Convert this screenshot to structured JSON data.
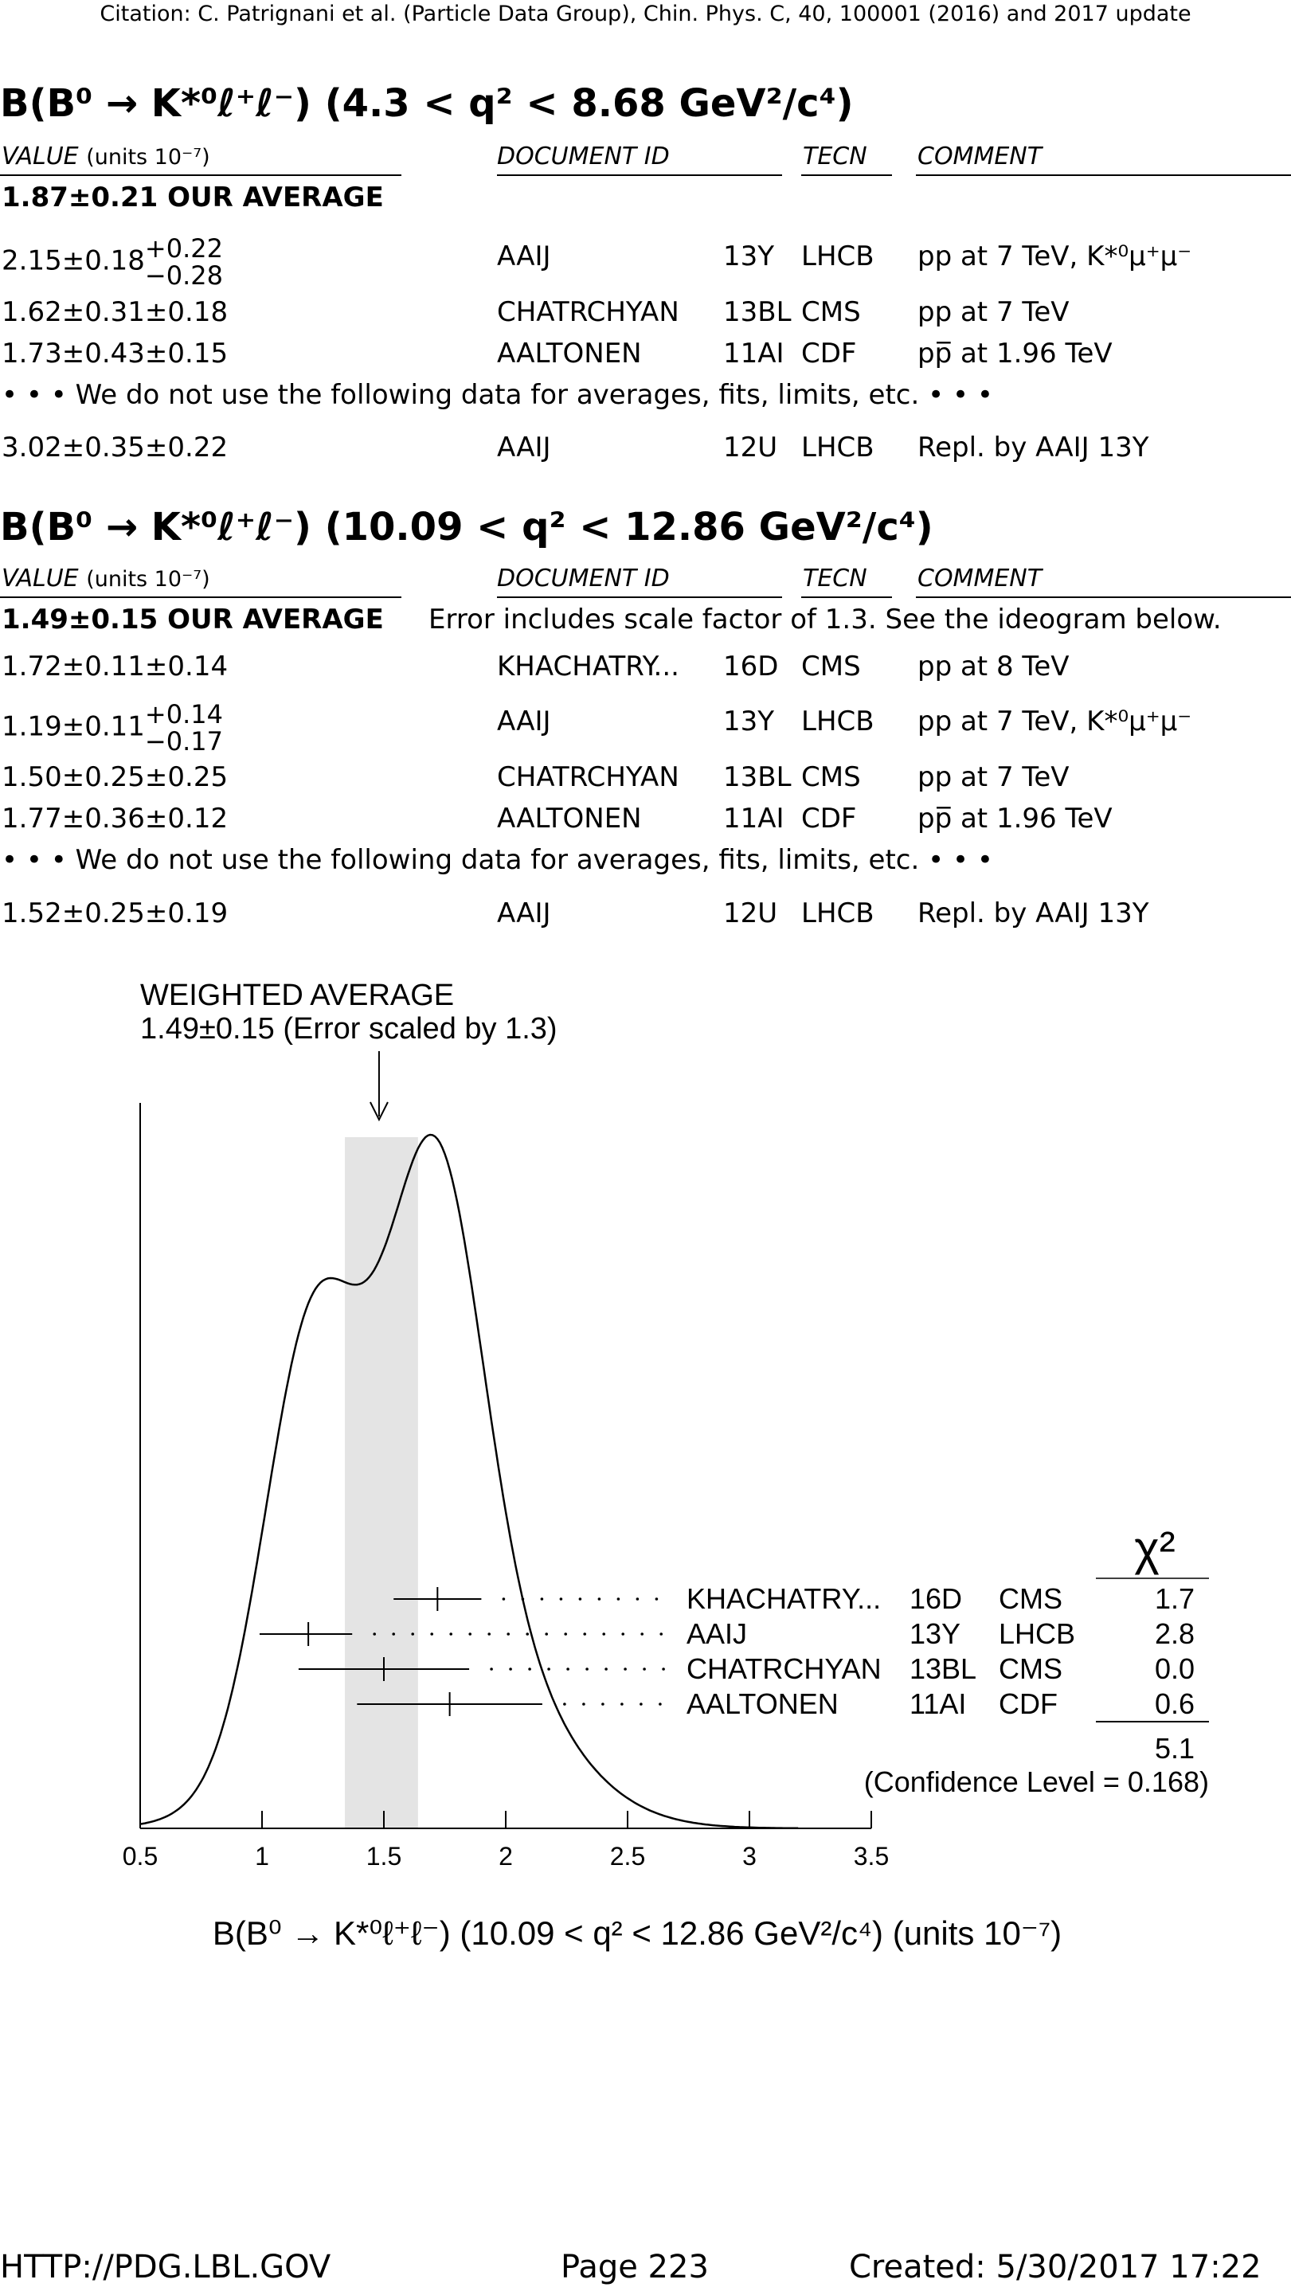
{
  "citation": "Citation: C. Patrignani et al. (Particle Data Group), Chin. Phys. C, 40, 100001 (2016) and 2017 update",
  "headers": {
    "value": "VALUE",
    "units": "(units 10⁻⁷)",
    "docid": "DOCUMENT ID",
    "tecn": "TECN",
    "comment": "COMMENT"
  },
  "section1": {
    "title": "B(B⁰ → K*⁰ℓ⁺ℓ⁻) (4.3 < q² < 8.68 GeV²/c⁴)",
    "average": "1.87±0.21 OUR AVERAGE",
    "rows": [
      {
        "value_main": "2.15±0.18",
        "err_up": "+0.22",
        "err_down": "−0.28",
        "docid": "AAIJ",
        "year": "13Y",
        "tecn": "LHCB",
        "comment": "pp at 7 TeV, K*⁰μ⁺μ⁻"
      },
      {
        "value": "1.62±0.31±0.18",
        "docid": "CHATRCHYAN",
        "year": "13BL",
        "tecn": "CMS",
        "comment": "pp at 7 TeV"
      },
      {
        "value": "1.73±0.43±0.15",
        "docid": "AALTONEN",
        "year": "11AI",
        "tecn": "CDF",
        "comment": "pp̅ at 1.96 TeV"
      }
    ],
    "notice": "• • • We do not use the following data for averages, fits, limits, etc. • • •",
    "unused": {
      "value": "3.02±0.35±0.22",
      "docid": "AAIJ",
      "year": "12U",
      "tecn": "LHCB",
      "comment": "Repl. by AAIJ 13Y"
    }
  },
  "section2": {
    "title": "B(B⁰ → K*⁰ℓ⁺ℓ⁻) (10.09 < q² < 12.86 GeV²/c⁴)",
    "average": "1.49±0.15 OUR AVERAGE",
    "average_note": "Error includes scale factor of 1.3. See the ideogram below.",
    "rows": [
      {
        "value": "1.72±0.11±0.14",
        "docid": "KHACHATRY...",
        "year": "16D",
        "tecn": "CMS",
        "comment": "pp at 8 TeV"
      },
      {
        "value_main": "1.19±0.11",
        "err_up": "+0.14",
        "err_down": "−0.17",
        "docid": "AAIJ",
        "year": "13Y",
        "tecn": "LHCB",
        "comment": "pp at 7 TeV, K*⁰μ⁺μ⁻"
      },
      {
        "value": "1.50±0.25±0.25",
        "docid": "CHATRCHYAN",
        "year": "13BL",
        "tecn": "CMS",
        "comment": "pp at 7 TeV"
      },
      {
        "value": "1.77±0.36±0.12",
        "docid": "AALTONEN",
        "year": "11AI",
        "tecn": "CDF",
        "comment": "pp̅ at 1.96 TeV"
      }
    ],
    "notice": "• • • We do not use the following data for averages, fits, limits, etc. • • •",
    "unused": {
      "value": "1.52±0.25±0.19",
      "docid": "AAIJ",
      "year": "12U",
      "tecn": "LHCB",
      "comment": "Repl. by AAIJ 13Y"
    }
  },
  "chart_data": {
    "type": "scatter",
    "title": "WEIGHTED AVERAGE",
    "subtitle": "1.49±0.15 (Error scaled by 1.3)",
    "xlabel": "B(B⁰ → K*⁰ℓ⁺ℓ⁻) (10.09 < q² < 12.86 GeV²/c⁴) (units 10⁻⁷)",
    "xlim": [
      0.5,
      3.5
    ],
    "xticks": [
      0.5,
      1,
      1.5,
      2,
      2.5,
      3,
      3.5
    ],
    "xtick_labels": [
      "0.5",
      "1",
      "1.5",
      "2",
      "2.5",
      "3",
      "3.5"
    ],
    "average": 1.49,
    "average_error": 0.15,
    "chi2_header": "χ²",
    "measurements": [
      {
        "label": "KHACHATRY...",
        "year": "16D",
        "tecn": "CMS",
        "value": 1.72,
        "err_minus": 0.18,
        "err_plus": 0.18,
        "chi2": "1.7"
      },
      {
        "label": "AAIJ",
        "year": "13Y",
        "tecn": "LHCB",
        "value": 1.19,
        "err_minus": 0.2,
        "err_plus": 0.18,
        "chi2": "2.8"
      },
      {
        "label": "CHATRCHYAN",
        "year": "13BL",
        "tecn": "CMS",
        "value": 1.5,
        "err_minus": 0.35,
        "err_plus": 0.35,
        "chi2": "0.0"
      },
      {
        "label": "AALTONEN",
        "year": "11AI",
        "tecn": "CDF",
        "value": 1.77,
        "err_minus": 0.38,
        "err_plus": 0.38,
        "chi2": "0.6"
      }
    ],
    "chi2_total": "5.1",
    "confidence_level": "(Confidence Level = 0.168)"
  },
  "footer": {
    "url": "HTTP://PDG.LBL.GOV",
    "page": "Page 223",
    "created": "Created: 5/30/2017 17:22"
  }
}
